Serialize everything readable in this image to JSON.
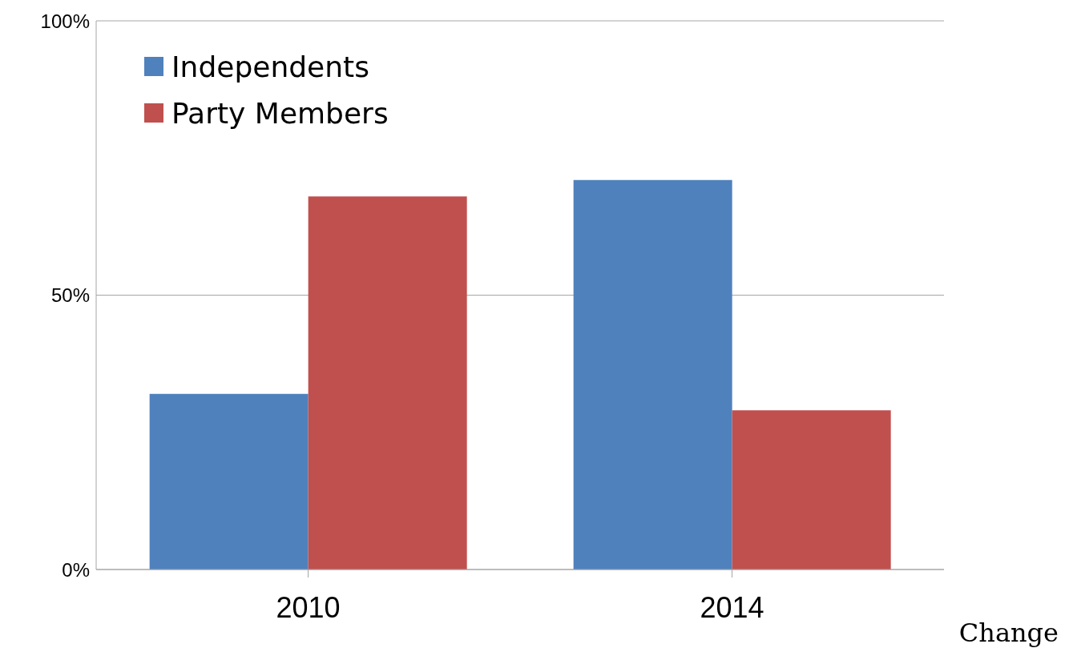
{
  "chart_data": {
    "type": "bar",
    "categories": [
      "2010",
      "2014"
    ],
    "series": [
      {
        "name": "Independents",
        "color": "#4f81bd",
        "values": [
          32,
          71
        ]
      },
      {
        "name": "Party Members",
        "color": "#c0504d",
        "values": [
          68,
          29
        ]
      }
    ],
    "ylim": [
      0,
      100
    ],
    "yticks": [
      {
        "value": 0,
        "label": "0%"
      },
      {
        "value": 50,
        "label": "50%"
      },
      {
        "value": 100,
        "label": "100%"
      }
    ],
    "grid": "y",
    "legend": "top left",
    "annotations": [
      "Change"
    ]
  }
}
